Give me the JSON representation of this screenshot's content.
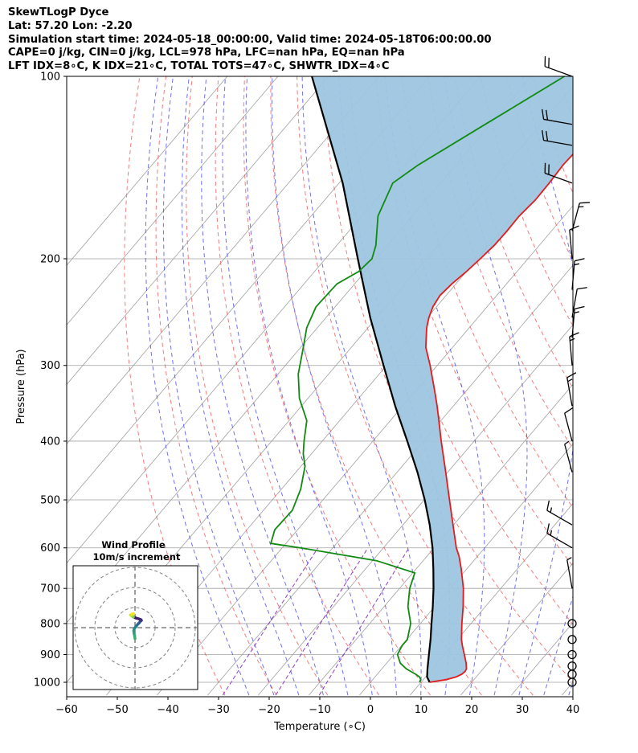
{
  "header": {
    "line1": "SkewTLogP Dyce",
    "line2": "Lat: 57.20   Lon: -2.20",
    "line3": "Simulation start time: 2024-05-18_00:00:00, Valid time: 2024-05-18T06:00:00.00",
    "line4": "CAPE=0 j/kg, CIN=0 j/kg, LCL=978 hPa, LFC=nan hPa, EQ=nan hPa",
    "line5": "LFT IDX=8∘C, K IDX=21∘C, TOTAL TOTS=47∘C, SHWTR_IDX=4∘C"
  },
  "colors": {
    "temperature": "#e41a1c",
    "dewpoint": "#118a11",
    "parcel": "#000000",
    "cape_fill": "#9ec5e0",
    "dry_adiabat": "#f25050",
    "moist_adiabat": "#4040f0",
    "mixing_ratio": "#8c3cc8",
    "isotherm": "#a0a0a0"
  },
  "chart_data": {
    "type": "skew-t",
    "xlabel": "Temperature ($^\\circ$C)",
    "xlabel_display": "Temperature (∘C)",
    "ylabel": "Pressure (hPa)",
    "xlim": [
      -60,
      40
    ],
    "ylim": [
      1050,
      100
    ],
    "y_scale": "log",
    "grid": true,
    "xticks": [
      "−60",
      "−50",
      "−40",
      "−30",
      "−20",
      "−10",
      "0",
      "10",
      "20",
      "30",
      "40"
    ],
    "yticks": [
      "100",
      "200",
      "300",
      "400",
      "500",
      "600",
      "700",
      "800",
      "900",
      "1000"
    ],
    "temperature": {
      "pressure": [
        1000,
        990,
        980,
        970,
        960,
        950,
        930,
        900,
        870,
        850,
        800,
        750,
        700,
        650,
        620,
        600,
        550,
        500,
        450,
        400,
        370,
        350,
        330,
        300,
        280,
        260,
        250,
        240,
        230,
        220,
        210,
        200,
        190,
        180,
        170,
        160,
        150,
        140,
        130,
        120,
        110,
        100
      ],
      "values": [
        11.7,
        14.5,
        16.0,
        16.7,
        16.9,
        16.7,
        15.7,
        13.9,
        12.0,
        10.8,
        8.2,
        5.6,
        2.6,
        -1.1,
        -3.6,
        -5.6,
        -10.1,
        -15.0,
        -20.4,
        -26.5,
        -30.4,
        -33.2,
        -36.3,
        -41.4,
        -45.3,
        -48.4,
        -49.7,
        -50.7,
        -51.2,
        -50.8,
        -50.0,
        -49.4,
        -48.9,
        -48.8,
        -48.9,
        -48.4,
        -48.5,
        -48.8,
        -48.5,
        -48.4,
        -48.6,
        -49.0
      ]
    },
    "dewpoint": {
      "pressure": [
        1000,
        990,
        980,
        970,
        960,
        950,
        930,
        900,
        870,
        850,
        800,
        750,
        700,
        660,
        630,
        600,
        590,
        560,
        520,
        480,
        440,
        420,
        400,
        370,
        340,
        310,
        280,
        260,
        240,
        220,
        210,
        200,
        190,
        170,
        150,
        140,
        120,
        100
      ],
      "values": [
        9.7,
        9.5,
        8.8,
        7.6,
        6.2,
        4.8,
        2.7,
        0.7,
        0.1,
        0.1,
        -1.9,
        -5.3,
        -8.0,
        -9.6,
        -19.2,
        -36.4,
        -43.0,
        -44.5,
        -44.3,
        -46.2,
        -49.2,
        -51.6,
        -53.6,
        -56.5,
        -61.7,
        -66.0,
        -69.5,
        -72.1,
        -73.8,
        -73.5,
        -71.3,
        -70.8,
        -72.3,
        -76.8,
        -79.4,
        -77.4,
        -71.0,
        -63.4
      ]
    },
    "parcel": {
      "pressure": [
        1000,
        980,
        950,
        900,
        850,
        800,
        750,
        700,
        650,
        600,
        550,
        500,
        450,
        400,
        350,
        300,
        250,
        200,
        150,
        100
      ],
      "values": [
        11.7,
        10.3,
        9.0,
        6.9,
        4.7,
        2.2,
        -0.4,
        -3.3,
        -6.6,
        -10.3,
        -14.7,
        -19.9,
        -26.0,
        -33.2,
        -41.5,
        -50.6,
        -61.3,
        -73.6,
        -89.3,
        -113.3
      ]
    },
    "wind_barbs": {
      "pressure": [
        1000,
        970,
        940,
        900,
        850,
        800,
        700,
        600,
        550,
        450,
        400,
        350,
        300,
        270,
        250,
        225,
        200,
        180,
        150,
        130,
        120,
        100
      ],
      "speed_ms": [
        0,
        0,
        0,
        0,
        0,
        0,
        4,
        10,
        10,
        5,
        7,
        8,
        8,
        10,
        7,
        8,
        6,
        8,
        12,
        12,
        12,
        12
      ],
      "direction_deg": [
        0,
        0,
        0,
        0,
        0,
        0,
        350,
        300,
        300,
        345,
        345,
        350,
        355,
        5,
        10,
        5,
        355,
        15,
        290,
        280,
        280,
        290
      ]
    },
    "hodograph": {
      "title": "Wind Profile",
      "subtitle": "10m/s increment",
      "ring_increment_ms": 10,
      "u": [
        0.0,
        -0.2,
        -0.5,
        -0.6,
        -0.4,
        0.2,
        0.8,
        1.5,
        2.3,
        2.8,
        3.2,
        2.9,
        1.8,
        0.4,
        -0.8,
        -1.7,
        -2.2,
        -1.6,
        -0.6
      ],
      "v": [
        -5.5,
        -4.0,
        -2.8,
        -1.6,
        -0.6,
        0.2,
        1.0,
        1.8,
        2.6,
        3.3,
        3.6,
        4.0,
        4.4,
        4.8,
        5.3,
        5.9,
        6.3,
        6.7,
        6.9
      ]
    }
  }
}
